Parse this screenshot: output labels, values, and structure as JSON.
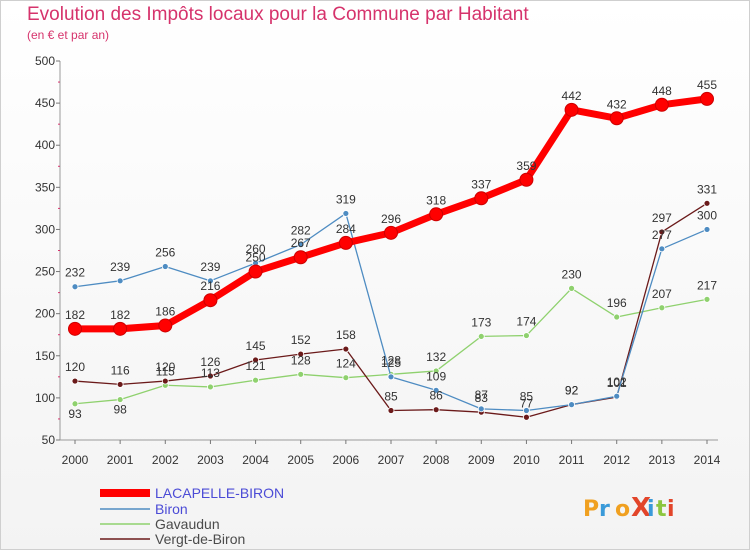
{
  "chart_data": {
    "type": "line",
    "title": "Evolution des Impôts locaux pour la Commune par Habitant",
    "subtitle": "(en € et par an)",
    "xlabel": "",
    "ylabel": "",
    "ylim": [
      50,
      500
    ],
    "yticks": [
      "50",
      "100",
      "150",
      "200",
      "250",
      "300",
      "350",
      "400",
      "450",
      "500"
    ],
    "categories": [
      "2000",
      "2001",
      "2002",
      "2003",
      "2004",
      "2005",
      "2006",
      "2007",
      "2008",
      "2009",
      "2010",
      "2011",
      "2012",
      "2013",
      "2014"
    ],
    "grid": false,
    "legend_position": "bottom-left",
    "series": [
      {
        "name": "LACAPELLE-BIRON",
        "color": "#ff0000",
        "values": [
          182,
          182,
          186,
          216,
          250,
          267,
          284,
          296,
          318,
          337,
          359,
          442,
          432,
          448,
          455
        ]
      },
      {
        "name": "Biron",
        "color": "#4e8cc2",
        "values": [
          232,
          239,
          256,
          239,
          260,
          282,
          319,
          125,
          109,
          87,
          85,
          92,
          102,
          277,
          300
        ]
      },
      {
        "name": "Gavaudun",
        "color": "#8fd16e",
        "values": [
          93,
          98,
          115,
          113,
          121,
          128,
          124,
          128,
          132,
          173,
          174,
          230,
          196,
          207,
          217
        ]
      },
      {
        "name": "Vergt-de-Biron",
        "color": "#6b1a1a",
        "values": [
          120,
          116,
          120,
          126,
          145,
          152,
          158,
          85,
          86,
          83,
          77,
          92,
          101,
          297,
          331
        ]
      }
    ],
    "data_labels": [
      [
        "182",
        "182",
        "186",
        "216",
        "250",
        "267",
        "284",
        "296",
        "318",
        "337",
        "359",
        "442",
        "432",
        "448",
        "455"
      ],
      [
        "232",
        "239",
        "256",
        "239",
        "260",
        "282",
        "319",
        "125",
        "109",
        "87",
        "85",
        "92",
        "102",
        "277",
        "300"
      ],
      [
        "93",
        "98",
        "115",
        "113",
        "121",
        "128",
        "124",
        "128",
        "132",
        "173",
        "174",
        "230",
        "196",
        "207",
        "217"
      ],
      [
        "120",
        "116",
        "120",
        "126",
        "145",
        "152",
        "158",
        "85",
        "86",
        "83",
        "77",
        "92",
        "101",
        "297",
        "331"
      ]
    ]
  },
  "logo": {
    "text": "ProXiti"
  }
}
